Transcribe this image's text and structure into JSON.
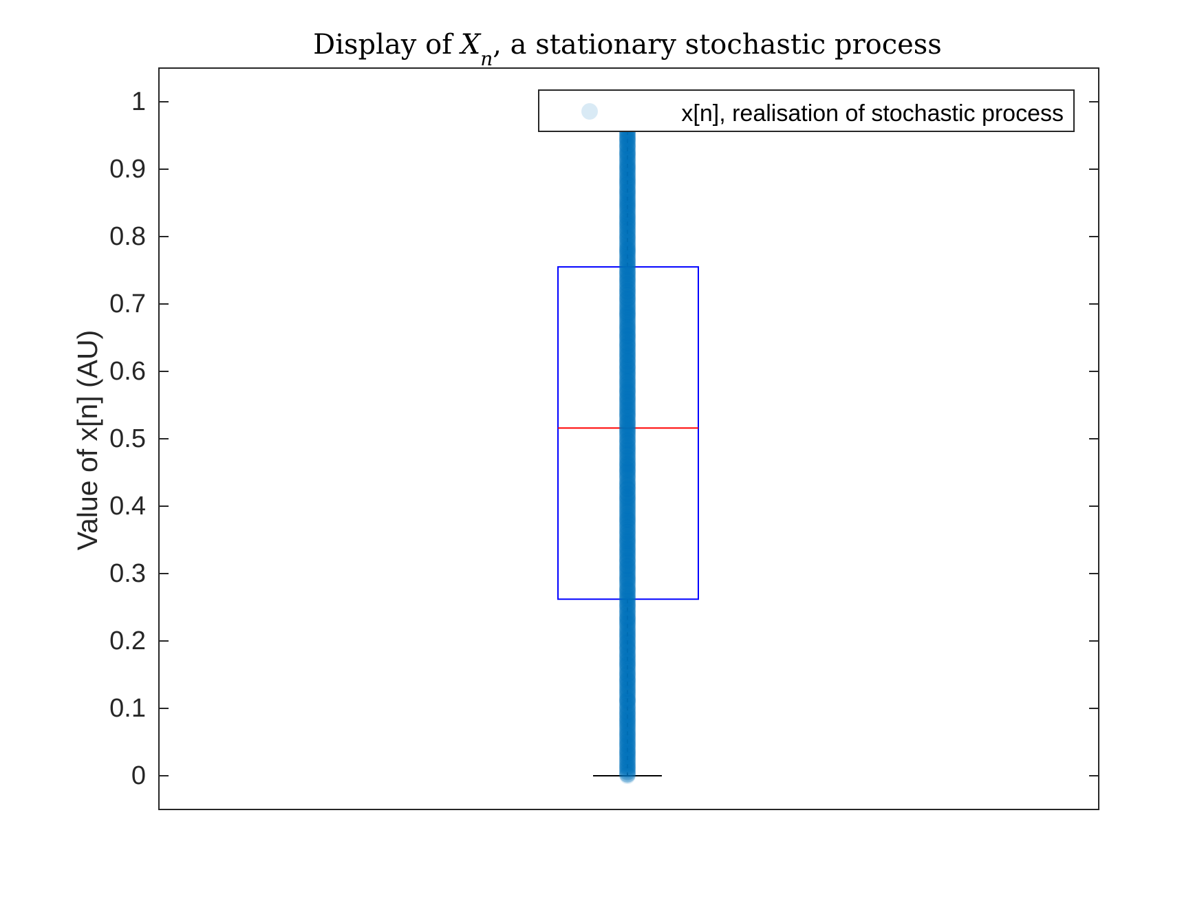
{
  "chart_data": {
    "type": "scatter",
    "title": {
      "prefix": "Display of ",
      "symbol": "X",
      "subscript": "n",
      "suffix": ", a stationary stochastic process"
    },
    "xlabel": "",
    "ylabel": "Value of x[n] (AU)",
    "ylim": [
      -0.05,
      1.05
    ],
    "yticks": [
      "0",
      "0.1",
      "0.2",
      "0.3",
      "0.4",
      "0.5",
      "0.6",
      "0.7",
      "0.8",
      "0.9",
      "1"
    ],
    "grid": false,
    "legend": {
      "position": "top-right",
      "entries": [
        "x[n], realisation of stochastic process"
      ]
    },
    "series": [
      {
        "name": "x[n], realisation of stochastic process",
        "x": 1,
        "y_min": 0,
        "y_max": 1,
        "distribution": "uniform",
        "color": "#0072BD"
      }
    ],
    "boxplot": {
      "q1": 0.262,
      "median": 0.516,
      "q3": 0.755,
      "whisker_low": 0,
      "whisker_high": 1,
      "box_color": "#0000FF",
      "median_color": "#FF0000",
      "whisker_color": "#000000"
    }
  }
}
